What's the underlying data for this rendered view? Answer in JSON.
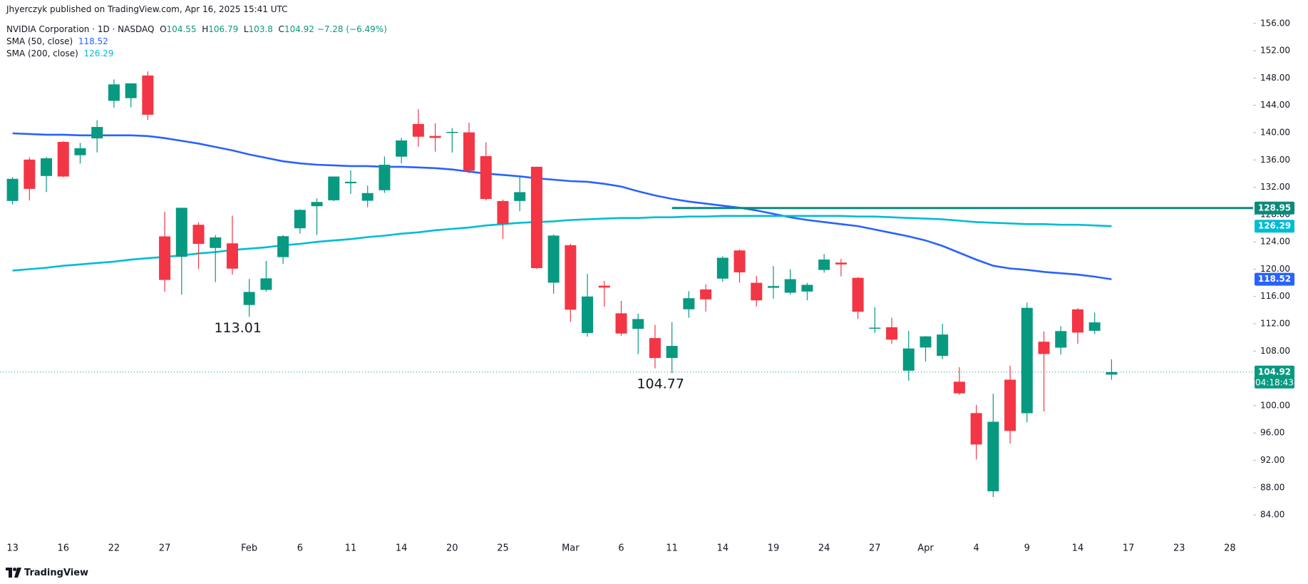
{
  "page": {
    "attribution": "Jhyerczyk published on TradingView.com, Apr 16, 2025 15:41 UTC",
    "footer_logo": "TradingView"
  },
  "chart_data": {
    "type": "candlestick",
    "title": "NVIDIA Corporation · 1D · NASDAQ",
    "ohlc_labels": [
      "O",
      "H",
      "L",
      "C"
    ],
    "change_label": "−7.28 (−6.49%)",
    "countdown": "04:18:43",
    "up_color": "#089981",
    "down_color": "#f23645",
    "categories": [
      "13",
      null,
      null,
      "16",
      null,
      null,
      "22",
      null,
      null,
      "27",
      null,
      null,
      null,
      null,
      "Feb",
      null,
      null,
      "6",
      null,
      null,
      "11",
      null,
      null,
      "14",
      null,
      null,
      "20",
      null,
      null,
      "25",
      null,
      null,
      null,
      "Mar",
      null,
      null,
      "6",
      null,
      null,
      "11",
      null,
      null,
      "14",
      null,
      null,
      "19",
      null,
      null,
      "24",
      null,
      null,
      "27",
      null,
      null,
      "Apr",
      null,
      null,
      "4",
      null,
      null,
      "9",
      null,
      null,
      "14",
      null,
      null,
      "17",
      null,
      null,
      "23",
      null,
      null,
      "28"
    ],
    "open": [
      129.99,
      136.05,
      133.65,
      138.64,
      136.69,
      139.16,
      144.66,
      145.05,
      148.37,
      124.8,
      121.81,
      126.5,
      123.1,
      123.78,
      114.75,
      116.96,
      121.76,
      125.99,
      129.22,
      130.09,
      132.58,
      130.02,
      131.56,
      136.48,
      141.27,
      139.51,
      140.03,
      140.04,
      136.56,
      129.98,
      129.99,
      135.0,
      118.02,
      123.51,
      110.65,
      117.58,
      113.53,
      111.25,
      109.9,
      106.99,
      114.12,
      117.03,
      118.61,
      122.74,
      118.0,
      117.27,
      116.55,
      116.72,
      119.88,
      120.96,
      118.73,
      111.35,
      111.49,
      105.13,
      108.52,
      107.29,
      103.51,
      98.91,
      87.46,
      103.81,
      98.89,
      109.37,
      108.5,
      114.11,
      110.97,
      104.55,
      null,
      null,
      null,
      null,
      null,
      null,
      null
    ],
    "high": [
      133.49,
      136.38,
      136.45,
      138.75,
      138.5,
      141.83,
      147.79,
      147.23,
      148.97,
      128.4,
      129.0,
      126.89,
      125.0,
      127.85,
      118.57,
      121.2,
      125.0,
      128.77,
      130.37,
      133.0,
      134.48,
      132.24,
      136.5,
      139.25,
      143.44,
      141.36,
      140.67,
      141.46,
      138.59,
      130.2,
      133.73,
      135.01,
      125.09,
      123.7,
      119.31,
      118.28,
      115.35,
      113.48,
      111.85,
      112.23,
      116.77,
      117.76,
      121.89,
      122.9,
      119.02,
      120.45,
      120.0,
      117.99,
      122.22,
      121.5,
      118.84,
      114.45,
      112.87,
      110.96,
      110.2,
      111.98,
      105.63,
      100.13,
      101.75,
      105.85,
      115.1,
      110.86,
      111.65,
      114.29,
      113.62,
      106.79,
      null,
      null,
      null,
      null,
      null,
      null,
      null
    ],
    "low": [
      129.51,
      130.05,
      131.29,
      133.49,
      135.46,
      137.09,
      143.67,
      143.72,
      141.88,
      116.7,
      116.25,
      120.05,
      118.1,
      119.19,
      113.01,
      116.7,
      120.76,
      125.21,
      125.0,
      129.96,
      131.02,
      129.08,
      131.17,
      135.5,
      137.93,
      137.22,
      137.08,
      134.03,
      130.08,
      124.44,
      128.49,
      120.01,
      116.4,
      112.28,
      110.11,
      114.51,
      110.22,
      107.56,
      105.46,
      104.77,
      112.88,
      113.79,
      118.15,
      118.03,
      114.54,
      115.69,
      116.28,
      115.44,
      119.48,
      118.95,
      112.7,
      110.66,
      109.07,
      103.65,
      106.47,
      106.79,
      101.6,
      92.11,
      86.62,
      94.46,
      97.53,
      99.15,
      107.49,
      109.07,
      110.5,
      103.8,
      null,
      null,
      null,
      null,
      null,
      null,
      null
    ],
    "close": [
      133.23,
      131.76,
      136.24,
      133.57,
      137.71,
      140.83,
      147.07,
      147.22,
      142.62,
      118.42,
      128.99,
      123.7,
      124.65,
      120.07,
      116.66,
      118.65,
      124.83,
      128.68,
      129.84,
      133.57,
      132.8,
      131.14,
      135.29,
      138.85,
      139.4,
      139.23,
      140.11,
      134.43,
      130.28,
      126.63,
      131.28,
      120.15,
      124.92,
      114.06,
      115.99,
      117.3,
      110.57,
      112.69,
      106.98,
      108.76,
      115.74,
      115.58,
      121.67,
      119.53,
      115.43,
      117.52,
      118.53,
      117.7,
      121.41,
      120.69,
      113.76,
      111.43,
      109.67,
      108.38,
      110.15,
      110.42,
      101.8,
      94.31,
      97.64,
      96.3,
      114.33,
      107.57,
      110.93,
      110.71,
      112.2,
      104.92,
      null,
      null,
      null,
      null,
      null,
      null,
      null
    ],
    "series": [
      {
        "name": "SMA (50, close)",
        "color": "#2962ff",
        "values": [
          139.9,
          139.8,
          139.7,
          139.7,
          139.6,
          139.6,
          139.6,
          139.6,
          139.5,
          139.2,
          138.8,
          138.4,
          137.9,
          137.4,
          136.8,
          136.3,
          135.8,
          135.5,
          135.3,
          135.2,
          135.1,
          135.1,
          135.0,
          135.0,
          134.9,
          134.8,
          134.6,
          134.3,
          134.0,
          133.8,
          133.6,
          133.3,
          133.1,
          132.9,
          132.8,
          132.5,
          132.1,
          131.4,
          130.8,
          130.3,
          129.9,
          129.6,
          129.3,
          129.0,
          128.6,
          128.1,
          127.6,
          127.2,
          126.9,
          126.6,
          126.3,
          125.8,
          125.3,
          124.8,
          124.2,
          123.4,
          122.4,
          121.4,
          120.5,
          120.1,
          119.9,
          119.6,
          119.4,
          119.2,
          118.9,
          118.52,
          null,
          null,
          null,
          null,
          null,
          null,
          null
        ]
      },
      {
        "name": "SMA (200, close)",
        "color": "#00bcd4",
        "values": [
          119.8,
          120.0,
          120.2,
          120.5,
          120.7,
          120.9,
          121.1,
          121.4,
          121.6,
          121.8,
          122.0,
          122.3,
          122.5,
          122.8,
          123.0,
          123.2,
          123.5,
          123.7,
          124.0,
          124.2,
          124.4,
          124.7,
          124.9,
          125.2,
          125.4,
          125.7,
          125.9,
          126.1,
          126.4,
          126.6,
          126.8,
          126.9,
          127.0,
          127.2,
          127.3,
          127.4,
          127.5,
          127.5,
          127.6,
          127.6,
          127.7,
          127.7,
          127.8,
          127.8,
          127.8,
          127.8,
          127.8,
          127.8,
          127.8,
          127.8,
          127.7,
          127.7,
          127.6,
          127.5,
          127.4,
          127.3,
          127.1,
          126.9,
          126.8,
          126.7,
          126.6,
          126.6,
          126.5,
          126.5,
          126.4,
          126.29,
          null,
          null,
          null,
          null,
          null,
          null,
          null
        ]
      }
    ],
    "level": {
      "value": 128.95,
      "color": "#0b8a7a"
    },
    "ylim": [
      80.56,
      159.43
    ],
    "yticks": [
      {
        "value": 84,
        "label": "84.00"
      },
      {
        "value": 88,
        "label": "88.00"
      },
      {
        "value": 92,
        "label": "92.00"
      },
      {
        "value": 96,
        "label": "96.00"
      },
      {
        "value": 100,
        "label": "100.00"
      },
      {
        "value": 104,
        "label": "104.00"
      },
      {
        "value": 108,
        "label": "108.00"
      },
      {
        "value": 112,
        "label": "112.00"
      },
      {
        "value": 116,
        "label": "116.00"
      },
      {
        "value": 120,
        "label": "120.00"
      },
      {
        "value": 124,
        "label": "124.00"
      },
      {
        "value": 128,
        "label": "128.00"
      },
      {
        "value": 132,
        "label": "132.00"
      },
      {
        "value": 136,
        "label": "136.00"
      },
      {
        "value": 140,
        "label": "140.00"
      },
      {
        "value": 144,
        "label": "144.00"
      },
      {
        "value": 148,
        "label": "148.00"
      },
      {
        "value": 152,
        "label": "152.00"
      },
      {
        "value": 156,
        "label": "156.00"
      }
    ],
    "grid": false
  }
}
